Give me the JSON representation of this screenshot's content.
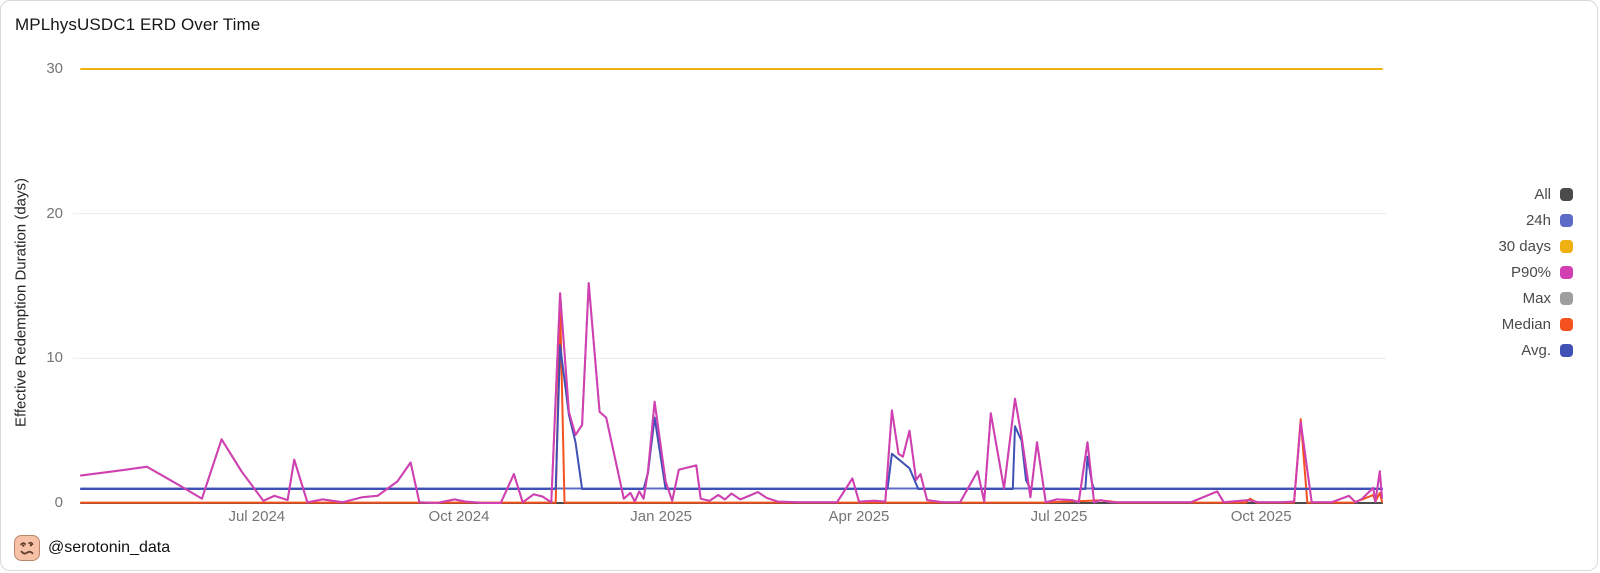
{
  "title": "MPLhysUSDC1 ERD Over Time",
  "y_axis": {
    "title": "Effective Redemption Duration (days)",
    "ticks": [
      0,
      10,
      20,
      30
    ],
    "range": [
      0,
      30
    ]
  },
  "x_axis": {
    "ticks": [
      {
        "label": "Jul 2024",
        "date": "2024-07-01"
      },
      {
        "label": "Oct 2024",
        "date": "2024-10-01"
      },
      {
        "label": "Jan 2025",
        "date": "2025-01-01"
      },
      {
        "label": "Apr 2025",
        "date": "2025-04-01"
      },
      {
        "label": "Jul 2025",
        "date": "2025-07-01"
      },
      {
        "label": "Oct 2025",
        "date": "2025-10-01"
      }
    ],
    "range": [
      "2024-04-12",
      "2025-11-25"
    ]
  },
  "colors": {
    "grid": "#ececec",
    "tick_text": "#757575",
    "legend_text": "#4a4a4a",
    "title_text": "#161616"
  },
  "attribution": {
    "handle": "@serotonin_data",
    "avatar": "woozy-face-emoji"
  },
  "chart_data": {
    "type": "line",
    "title": "MPLhysUSDC1 ERD Over Time",
    "xlabel": "",
    "ylabel": "Effective Redemption Duration (days)",
    "ylim": [
      0,
      30
    ],
    "xlim": [
      "2024-04-12",
      "2025-11-25"
    ],
    "grid": "horizontal",
    "legend_position": "right",
    "series": [
      {
        "id": "all",
        "label": "All",
        "color": "#4a4a4a",
        "z": 2,
        "points": [
          [
            "2024-04-12",
            0
          ],
          [
            "2025-11-25",
            0
          ]
        ]
      },
      {
        "id": "h24",
        "label": "24h",
        "color": "#5b6bc6",
        "z": 3,
        "points": [
          [
            "2024-04-12",
            1.0
          ],
          [
            "2025-11-25",
            1.0
          ]
        ]
      },
      {
        "id": "days30",
        "label": "30 days",
        "color": "#eeb111",
        "z": 1,
        "points": [
          [
            "2024-04-12",
            30
          ],
          [
            "2025-11-25",
            30
          ]
        ]
      },
      {
        "id": "p90",
        "label": "P90%",
        "color": "#d23fb3",
        "z": 7,
        "points": [
          [
            "2024-04-12",
            1.9
          ],
          [
            "2024-04-27",
            2.2
          ],
          [
            "2024-05-12",
            2.5
          ],
          [
            "2024-05-27",
            1.2
          ],
          [
            "2024-06-06",
            0.3
          ],
          [
            "2024-06-15",
            4.4
          ],
          [
            "2024-06-24",
            2.2
          ],
          [
            "2024-07-04",
            0.15
          ],
          [
            "2024-07-09",
            0.5
          ],
          [
            "2024-07-15",
            0.2
          ],
          [
            "2024-07-18",
            3.0
          ],
          [
            "2024-07-24",
            0.05
          ],
          [
            "2024-07-31",
            0.25
          ],
          [
            "2024-08-09",
            0.05
          ],
          [
            "2024-08-18",
            0.4
          ],
          [
            "2024-08-25",
            0.5
          ],
          [
            "2024-09-03",
            1.5
          ],
          [
            "2024-09-09",
            2.8
          ],
          [
            "2024-09-13",
            0.05
          ],
          [
            "2024-09-21",
            0.0
          ],
          [
            "2024-09-29",
            0.25
          ],
          [
            "2024-10-04",
            0.1
          ],
          [
            "2024-10-12",
            0.0
          ],
          [
            "2024-10-20",
            0.0
          ],
          [
            "2024-10-26",
            2.0
          ],
          [
            "2024-10-30",
            0.05
          ],
          [
            "2024-11-04",
            0.6
          ],
          [
            "2024-11-08",
            0.45
          ],
          [
            "2024-11-12",
            0.05
          ],
          [
            "2024-11-16",
            14.5
          ],
          [
            "2024-11-20",
            6.3
          ],
          [
            "2024-11-23",
            4.7
          ],
          [
            "2024-11-26",
            5.4
          ],
          [
            "2024-11-29",
            15.2
          ],
          [
            "2024-12-04",
            6.3
          ],
          [
            "2024-12-07",
            5.9
          ],
          [
            "2024-12-15",
            0.3
          ],
          [
            "2024-12-18",
            0.7
          ],
          [
            "2024-12-20",
            0.1
          ],
          [
            "2024-12-22",
            0.8
          ],
          [
            "2024-12-24",
            0.3
          ],
          [
            "2024-12-26",
            2.2
          ],
          [
            "2024-12-29",
            7.0
          ],
          [
            "2025-01-03",
            1.5
          ],
          [
            "2025-01-06",
            0.15
          ],
          [
            "2025-01-09",
            2.3
          ],
          [
            "2025-01-17",
            2.6
          ],
          [
            "2025-01-19",
            0.3
          ],
          [
            "2025-01-23",
            0.15
          ],
          [
            "2025-01-27",
            0.55
          ],
          [
            "2025-01-30",
            0.25
          ],
          [
            "2025-02-02",
            0.65
          ],
          [
            "2025-02-06",
            0.25
          ],
          [
            "2025-02-10",
            0.5
          ],
          [
            "2025-02-14",
            0.75
          ],
          [
            "2025-02-18",
            0.35
          ],
          [
            "2025-02-23",
            0.1
          ],
          [
            "2025-03-04",
            0.05
          ],
          [
            "2025-03-13",
            0.05
          ],
          [
            "2025-03-22",
            0.05
          ],
          [
            "2025-03-29",
            1.7
          ],
          [
            "2025-04-01",
            0.1
          ],
          [
            "2025-04-08",
            0.15
          ],
          [
            "2025-04-13",
            0.1
          ],
          [
            "2025-04-16",
            6.4
          ],
          [
            "2025-04-19",
            3.4
          ],
          [
            "2025-04-21",
            3.2
          ],
          [
            "2025-04-24",
            5.0
          ],
          [
            "2025-04-27",
            1.6
          ],
          [
            "2025-04-29",
            2.0
          ],
          [
            "2025-05-02",
            0.2
          ],
          [
            "2025-05-09",
            0.05
          ],
          [
            "2025-05-17",
            0.05
          ],
          [
            "2025-05-25",
            2.2
          ],
          [
            "2025-05-28",
            0.1
          ],
          [
            "2025-05-31",
            6.2
          ],
          [
            "2025-06-06",
            1.0
          ],
          [
            "2025-06-11",
            7.2
          ],
          [
            "2025-06-14",
            4.6
          ],
          [
            "2025-06-18",
            0.4
          ],
          [
            "2025-06-21",
            4.2
          ],
          [
            "2025-06-25",
            0.05
          ],
          [
            "2025-06-30",
            0.25
          ],
          [
            "2025-07-07",
            0.2
          ],
          [
            "2025-07-10",
            0.05
          ],
          [
            "2025-07-14",
            4.2
          ],
          [
            "2025-07-17",
            0.05
          ],
          [
            "2025-07-20",
            0.2
          ],
          [
            "2025-07-25",
            0.05
          ],
          [
            "2025-08-03",
            0.05
          ],
          [
            "2025-08-17",
            0.05
          ],
          [
            "2025-08-30",
            0.05
          ],
          [
            "2025-09-11",
            0.8
          ],
          [
            "2025-09-14",
            0.05
          ],
          [
            "2025-09-25",
            0.2
          ],
          [
            "2025-09-30",
            0.05
          ],
          [
            "2025-10-10",
            0.05
          ],
          [
            "2025-10-16",
            0.1
          ],
          [
            "2025-10-19",
            5.6
          ],
          [
            "2025-10-24",
            0.05
          ],
          [
            "2025-11-02",
            0.05
          ],
          [
            "2025-11-10",
            0.5
          ],
          [
            "2025-11-13",
            0.05
          ],
          [
            "2025-11-16",
            0.3
          ],
          [
            "2025-11-21",
            1.05
          ],
          [
            "2025-11-22",
            0.1
          ],
          [
            "2025-11-24",
            2.2
          ],
          [
            "2025-11-25",
            0.35
          ]
        ]
      },
      {
        "id": "max",
        "label": "Max",
        "color": "#9e9e9e",
        "z": 4,
        "same_as": "p90",
        "points": []
      },
      {
        "id": "median",
        "label": "Median",
        "color": "#f4511e",
        "z": 5,
        "points": [
          [
            "2024-04-12",
            0.03
          ],
          [
            "2024-11-14",
            0.03
          ],
          [
            "2024-11-16",
            13.8
          ],
          [
            "2024-11-18",
            0.03
          ],
          [
            "2025-06-24",
            0.03
          ],
          [
            "2025-07-19",
            0.18
          ],
          [
            "2025-07-24",
            0.12
          ],
          [
            "2025-07-28",
            0.03
          ],
          [
            "2025-09-24",
            0.03
          ],
          [
            "2025-09-26",
            0.3
          ],
          [
            "2025-09-29",
            0.03
          ],
          [
            "2025-10-16",
            0.03
          ],
          [
            "2025-10-19",
            5.8
          ],
          [
            "2025-10-22",
            0.03
          ],
          [
            "2025-11-12",
            0.03
          ],
          [
            "2025-11-16",
            0.25
          ],
          [
            "2025-11-21",
            0.55
          ],
          [
            "2025-11-22",
            0.1
          ],
          [
            "2025-11-24",
            0.7
          ],
          [
            "2025-11-25",
            0.1
          ]
        ]
      },
      {
        "id": "avg",
        "label": "Avg.",
        "color": "#3f51b5",
        "z": 6,
        "points": [
          [
            "2024-04-12",
            0.97
          ],
          [
            "2024-11-14",
            0.97
          ],
          [
            "2024-11-16",
            10.9
          ],
          [
            "2024-11-20",
            6.1
          ],
          [
            "2024-11-23",
            4.2
          ],
          [
            "2024-11-26",
            0.97
          ],
          [
            "2024-12-24",
            0.97
          ],
          [
            "2024-12-26",
            2.1
          ],
          [
            "2024-12-29",
            5.9
          ],
          [
            "2025-01-03",
            0.97
          ],
          [
            "2025-04-14",
            0.97
          ],
          [
            "2025-04-16",
            3.4
          ],
          [
            "2025-04-20",
            2.9
          ],
          [
            "2025-04-24",
            2.4
          ],
          [
            "2025-04-28",
            0.97
          ],
          [
            "2025-06-10",
            0.97
          ],
          [
            "2025-06-11",
            5.3
          ],
          [
            "2025-06-14",
            4.3
          ],
          [
            "2025-06-16",
            1.6
          ],
          [
            "2025-06-18",
            0.97
          ],
          [
            "2025-07-13",
            0.97
          ],
          [
            "2025-07-14",
            3.2
          ],
          [
            "2025-07-16",
            1.4
          ],
          [
            "2025-07-17",
            0.97
          ],
          [
            "2025-11-25",
            0.97
          ]
        ]
      }
    ]
  }
}
